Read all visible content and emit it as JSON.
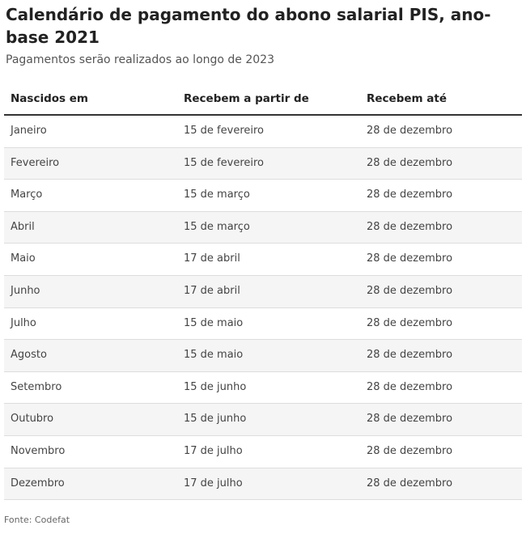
{
  "title": "Calendário de pagamento do abono salarial PIS, ano-base 2021",
  "subtitle": "Pagamentos serão realizados ao longo de 2023",
  "table": {
    "headers": [
      "Nascidos em",
      "Recebem a partir de",
      "Recebem até"
    ],
    "rows": [
      [
        "Janeiro",
        "15 de fevereiro",
        "28 de dezembro"
      ],
      [
        "Fevereiro",
        "15 de fevereiro",
        "28 de dezembro"
      ],
      [
        "Março",
        "15 de março",
        "28 de dezembro"
      ],
      [
        "Abril",
        "15 de março",
        "28 de dezembro"
      ],
      [
        "Maio",
        "17 de abril",
        "28 de dezembro"
      ],
      [
        "Junho",
        "17 de abril",
        "28 de dezembro"
      ],
      [
        "Julho",
        "15 de maio",
        "28 de dezembro"
      ],
      [
        "Agosto",
        "15 de maio",
        "28 de dezembro"
      ],
      [
        "Setembro",
        "15 de junho",
        "28 de dezembro"
      ],
      [
        "Outubro",
        "15 de junho",
        "28 de dezembro"
      ],
      [
        "Novembro",
        "17 de julho",
        "28 de dezembro"
      ],
      [
        "Dezembro",
        "17 de julho",
        "28 de dezembro"
      ]
    ]
  },
  "source": "Fonte: Codefat",
  "colors": {
    "row_alt_background": "#f5f5f5",
    "header_rule": "#333333",
    "row_rule": "#dddddd"
  }
}
